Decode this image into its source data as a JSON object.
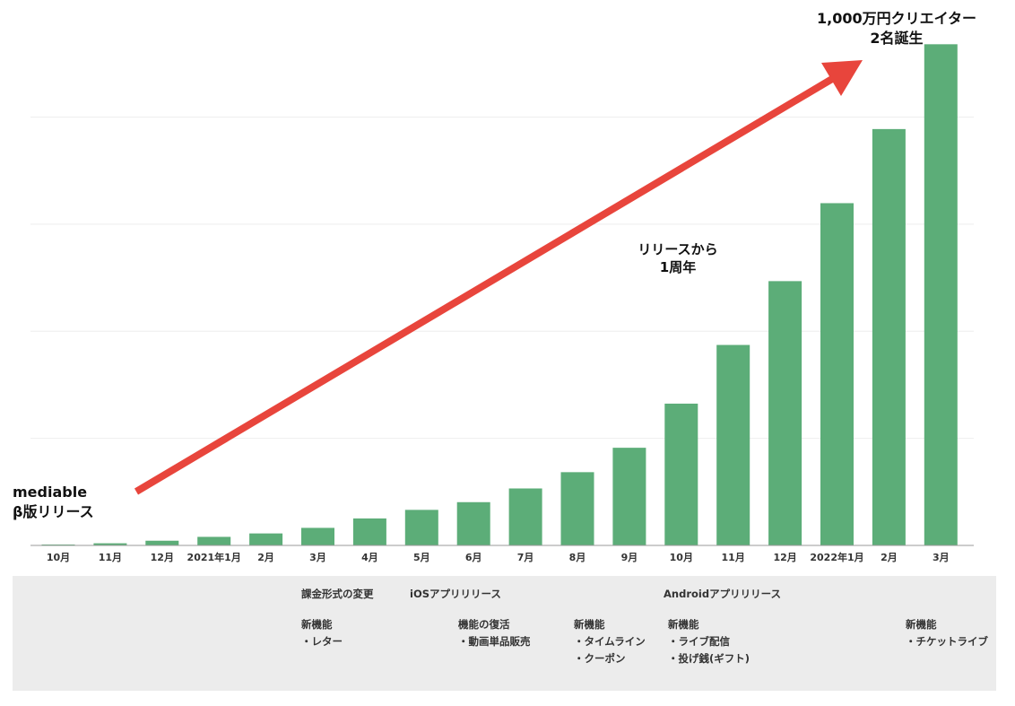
{
  "chart_data": {
    "type": "bar",
    "categories": [
      "10月",
      "11月",
      "12月",
      "2021年1月",
      "2月",
      "3月",
      "4月",
      "5月",
      "6月",
      "7月",
      "8月",
      "9月",
      "10月",
      "11月",
      "12月",
      "2022年1月",
      "2月",
      "3月"
    ],
    "values": [
      0.2,
      0.5,
      1.1,
      2.0,
      2.8,
      4.1,
      6.3,
      8.3,
      10.1,
      13.3,
      17.1,
      22.8,
      33.1,
      46.8,
      61.7,
      79.9,
      97.2,
      117.0
    ],
    "ylim": [
      0,
      120
    ],
    "gridlines": [
      0,
      25,
      50,
      75,
      100
    ],
    "grid": true,
    "bar_color": "#5cad78",
    "title": "",
    "xlabel": "",
    "ylabel": ""
  },
  "annotations": {
    "beta_release": [
      "mediable",
      "β版リリース"
    ],
    "one_year": [
      "リリースから",
      "1周年"
    ],
    "milestone": [
      "1,000万円クリエイター",
      "2名誕生"
    ],
    "arrow_color": "#e8453c"
  },
  "timeline": {
    "billing_change": "課金形式の変更",
    "ios_release": "iOSアプリリリース",
    "android_release": "Androidアプリリリース",
    "features_march": [
      "新機能",
      "・レター"
    ],
    "features_june": [
      "機能の復活",
      "・動画単品販売"
    ],
    "features_sept": [
      "新機能",
      "・タイムライン",
      "・クーポン"
    ],
    "features_oct": [
      "新機能",
      "・ライブ配信",
      "・投げ銭(ギフト)"
    ],
    "features_mar22": [
      "新機能",
      "・チケットライブ"
    ]
  }
}
